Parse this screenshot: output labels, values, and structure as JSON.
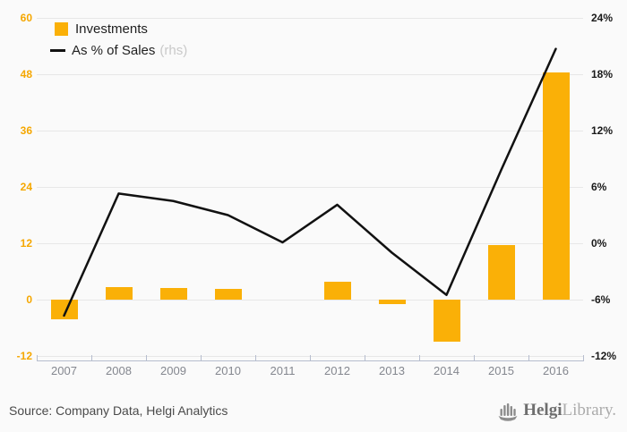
{
  "chart_data": {
    "type": "combo",
    "categories": [
      "2007",
      "2008",
      "2009",
      "2010",
      "2011",
      "2012",
      "2013",
      "2014",
      "2015",
      "2016"
    ],
    "series": [
      {
        "name": "Investments",
        "type": "bar",
        "axis": "left",
        "color": "#FAB007",
        "values": [
          -4.1,
          2.6,
          2.5,
          2.2,
          0,
          3.8,
          -0.9,
          -9.0,
          11.7,
          48.4
        ]
      },
      {
        "name": "As % of Sales",
        "type": "line",
        "axis": "right",
        "axis_note": "(rhs)",
        "color": "#111111",
        "values": [
          -7.7,
          5.3,
          4.5,
          3.0,
          0.1,
          4.1,
          -1.0,
          -5.5,
          7.8,
          20.7
        ]
      }
    ],
    "left_axis": {
      "min": -12,
      "max": 60,
      "step": 12,
      "ticks": [
        "60",
        "48",
        "36",
        "24",
        "12",
        "0",
        "-12"
      ],
      "color": "#F5A700"
    },
    "right_axis": {
      "min": -12,
      "max": 24,
      "step": 6,
      "ticks": [
        "24%",
        "18%",
        "12%",
        "6%",
        "0%",
        "-6%",
        "-12%"
      ],
      "color": "#1A1A1A"
    },
    "grid": true,
    "legend_position": "top-left",
    "title": ""
  },
  "footer": {
    "source": "Source: Company Data, Helgi Analytics",
    "brand_bold": "Helgi",
    "brand_light": "Library."
  },
  "colors": {
    "background": "#FAFAFA",
    "gridline": "#E7E7E7",
    "x_axis": "#B6BDCE",
    "x_labels": "#84878F"
  }
}
